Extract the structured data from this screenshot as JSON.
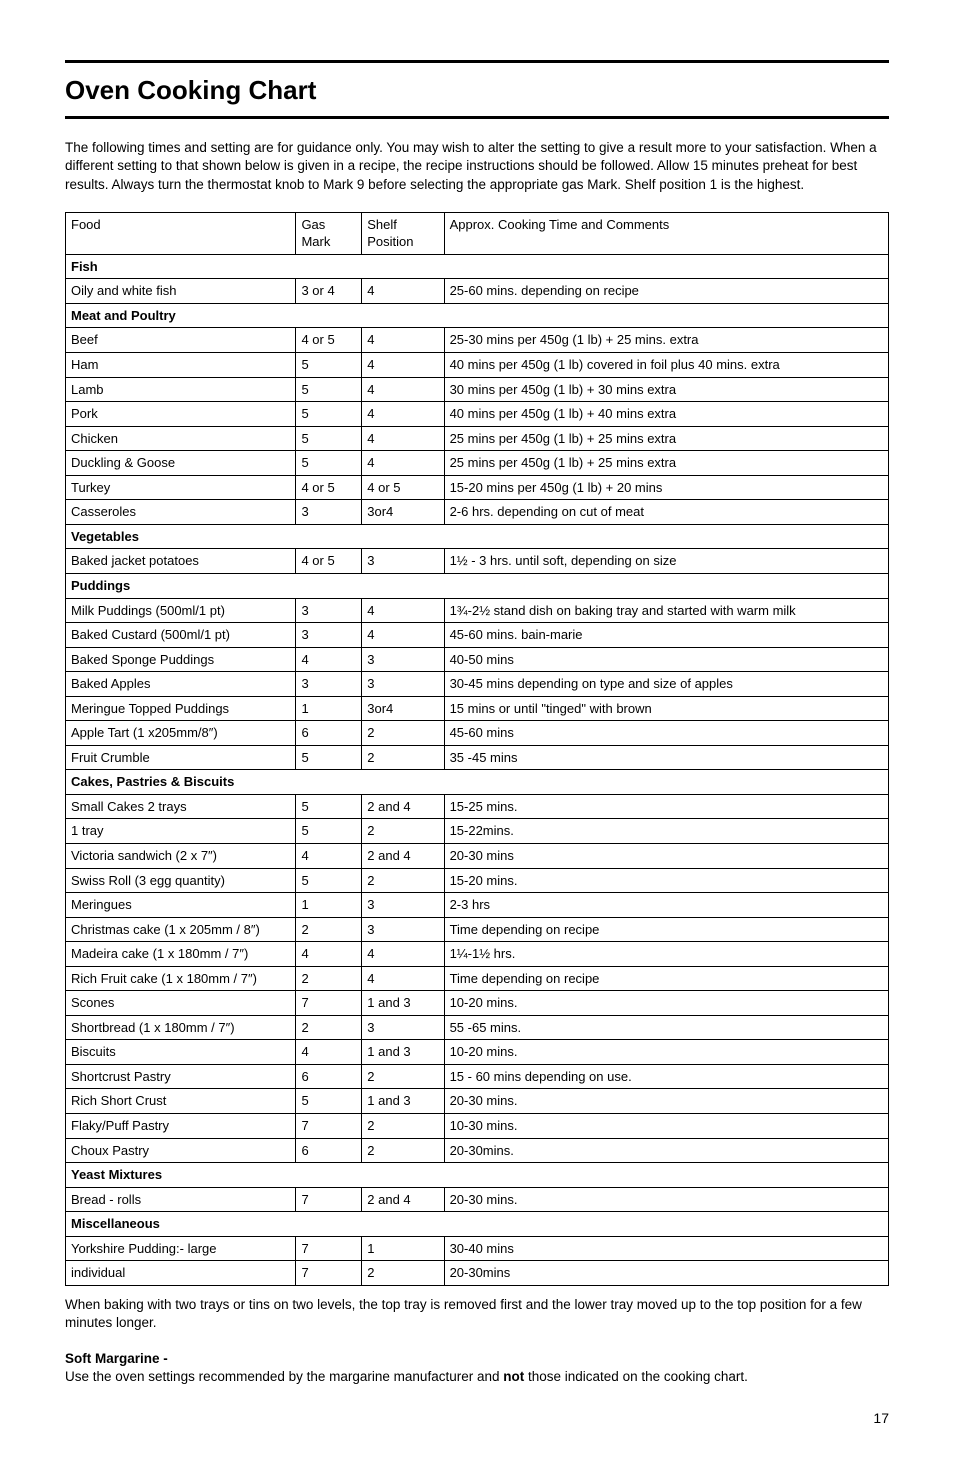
{
  "title": "Oven Cooking Chart",
  "intro": "The following times and setting are for guidance only. You may wish to alter the setting to give a result more to your satisfaction. When a different setting to that shown below is given in a recipe, the recipe instructions should be followed. Allow 15 minutes preheat for best results. Always turn the thermostat knob to Mark 9 before selecting the appropriate gas Mark. Shelf position 1 is the highest.",
  "columns": {
    "food": "Food",
    "gas": "Gas Mark",
    "shelf": "Shelf Position",
    "time": "Approx. Cooking Time and Comments"
  },
  "sections": [
    {
      "label": "Fish",
      "rows": [
        {
          "food": "Oily and white fish",
          "gas": "3 or 4",
          "shelf": "4",
          "time": "25-60 mins. depending on recipe"
        }
      ]
    },
    {
      "label": "Meat and Poultry",
      "rows": [
        {
          "food": "Beef",
          "gas": "4 or 5",
          "shelf": "4",
          "time": "25-30 mins per 450g (1 lb) + 25 mins. extra"
        },
        {
          "food": "Ham",
          "gas": "5",
          "shelf": "4",
          "time": "40 mins per 450g (1 lb) covered in foil plus 40 mins. extra"
        },
        {
          "food": "Lamb",
          "gas": "5",
          "shelf": "4",
          "time": "30 mins per 450g (1 lb) + 30 mins extra"
        },
        {
          "food": "Pork",
          "gas": "5",
          "shelf": "4",
          "time": "40 mins per 450g (1 lb) + 40 mins extra"
        },
        {
          "food": "Chicken",
          "gas": "5",
          "shelf": "4",
          "time": "25 mins per 450g (1 lb) + 25 mins extra"
        },
        {
          "food": "Duckling & Goose",
          "gas": "5",
          "shelf": "4",
          "time": "25 mins per 450g (1 lb) + 25 mins extra"
        },
        {
          "food": "Turkey",
          "gas": "4 or 5",
          "shelf": "4 or 5",
          "time": "15-20 mins per 450g (1 lb) + 20 mins"
        },
        {
          "food": "Casseroles",
          "gas": "3",
          "shelf": "3or4",
          "time": "2-6 hrs. depending on cut of meat"
        }
      ]
    },
    {
      "label": "Vegetables",
      "rows": [
        {
          "food": "Baked jacket potatoes",
          "gas": "4 or 5",
          "shelf": "3",
          "time": "1½ - 3 hrs. until soft, depending on size"
        }
      ]
    },
    {
      "label": "Puddings",
      "rows": [
        {
          "food": "Milk Puddings (500ml/1 pt)",
          "gas": "3",
          "shelf": "4",
          "time": "1¾-2½ stand dish on baking tray and started with warm milk"
        },
        {
          "food": "Baked Custard (500ml/1 pt)",
          "gas": "3",
          "shelf": "4",
          "time": "45-60 mins. bain-marie"
        },
        {
          "food": "Baked Sponge Puddings",
          "gas": "4",
          "shelf": "3",
          "time": "40-50 mins"
        },
        {
          "food": "Baked Apples",
          "gas": "3",
          "shelf": "3",
          "time": "30-45 mins depending on type and size of apples"
        },
        {
          "food": "Meringue Topped Puddings",
          "gas": "1",
          "shelf": "3or4",
          "time": "15 mins or until \"tinged\" with brown"
        },
        {
          "food": "Apple Tart (1 x205mm/8″)",
          "gas": "6",
          "shelf": "2",
          "time": "45-60 mins"
        },
        {
          "food": "Fruit Crumble",
          "gas": "5",
          "shelf": "2",
          "time": "35 -45 mins"
        }
      ]
    },
    {
      "label": "Cakes, Pastries & Biscuits",
      "rows": [
        {
          "food": "Small Cakes 2 trays",
          "gas": "5",
          "shelf": "2 and 4",
          "time": "15-25 mins."
        },
        {
          "food": "1 tray",
          "gas": "5",
          "shelf": "2",
          "time": "15-22mins."
        },
        {
          "food": "Victoria sandwich (2 x 7″)",
          "gas": "4",
          "shelf": "2 and 4",
          "time": "20-30 mins"
        },
        {
          "food": "Swiss Roll (3 egg quantity)",
          "gas": "5",
          "shelf": "2",
          "time": "15-20 mins."
        },
        {
          "food": "Meringues",
          "gas": "1",
          "shelf": "3",
          "time": "2-3 hrs"
        },
        {
          "food": "Christmas cake (1 x 205mm / 8″)",
          "gas": "2",
          "shelf": "3",
          "time": "Time depending on recipe"
        },
        {
          "food": "Madeira cake (1 x 180mm / 7″)",
          "gas": "4",
          "shelf": "4",
          "time": "1¼-1½ hrs."
        },
        {
          "food": "Rich Fruit cake (1 x 180mm / 7″)",
          "gas": "2",
          "shelf": "4",
          "time": "Time depending on recipe"
        },
        {
          "food": "Scones",
          "gas": "7",
          "shelf": "1 and 3",
          "time": "10-20 mins."
        },
        {
          "food": "Shortbread (1 x 180mm / 7″)",
          "gas": "2",
          "shelf": "3",
          "time": "55 -65 mins."
        },
        {
          "food": "Biscuits",
          "gas": "4",
          "shelf": "1 and 3",
          "time": "10-20 mins."
        },
        {
          "food": "Shortcrust Pastry",
          "gas": "6",
          "shelf": "2",
          "time": "15 - 60 mins depending on use."
        },
        {
          "food": "Rich Short Crust",
          "gas": "5",
          "shelf": "1 and 3",
          "time": "20-30 mins."
        },
        {
          "food": "Flaky/Puff Pastry",
          "gas": "7",
          "shelf": "2",
          "time": "10-30 mins."
        },
        {
          "food": "Choux Pastry",
          "gas": "6",
          "shelf": "2",
          "time": "20-30mins."
        }
      ]
    },
    {
      "label": "Yeast Mixtures",
      "rows": [
        {
          "food": "Bread - rolls",
          "gas": "7",
          "shelf": "2 and 4",
          "time": "20-30 mins."
        }
      ]
    },
    {
      "label": "Miscellaneous",
      "rows": [
        {
          "food": "Yorkshire Pudding:- large",
          "gas": "7",
          "shelf": "1",
          "time": "30-40 mins"
        },
        {
          "food": "individual",
          "gas": "7",
          "shelf": "2",
          "time": "20-30mins"
        }
      ]
    }
  ],
  "afterTable": "When baking with two trays or tins on two levels, the top tray is removed first and the lower tray moved up to the top position for a few minutes longer.",
  "softMargTitle": "Soft Margarine -",
  "softMargBodyPre": "Use the oven settings recommended by the margarine manufacturer and ",
  "softMargBodyBold": "not",
  "softMargBodyPost": " those indicated on the cooking chart.",
  "pageNumber": "17"
}
